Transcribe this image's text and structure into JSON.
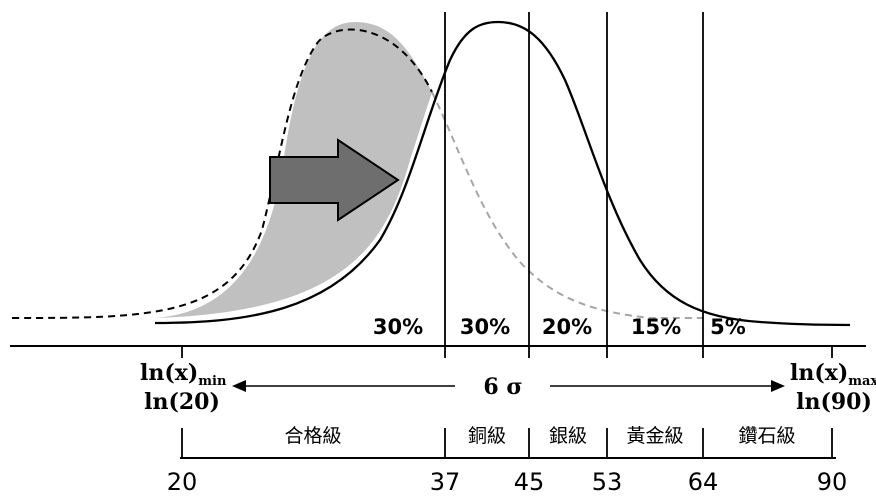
{
  "colors": {
    "background": "#ffffff",
    "old_curve_fill": "#c0c0c0",
    "arrow_fill": "#6e6e6e",
    "dashed_tail": "#a6a6a6",
    "lines": "#000000"
  },
  "segment_percents": [
    "30%",
    "30%",
    "20%",
    "15%",
    "5%"
  ],
  "left_label": {
    "base": "ln(x)",
    "sub": "min",
    "line2": "ln(20)"
  },
  "right_label": {
    "base": "ln(x)",
    "sub": "max",
    "line2": "ln(90)"
  },
  "span_label": "6 σ",
  "tiers": [
    "合格級",
    "銅級",
    "銀級",
    "黃金級",
    "鑽石級"
  ],
  "ticks": [
    "20",
    "37",
    "45",
    "53",
    "64",
    "90"
  ],
  "arrow_icon": "right-shift-arrow"
}
